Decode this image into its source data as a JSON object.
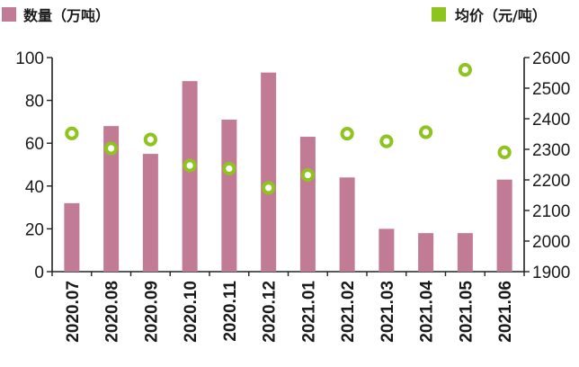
{
  "chart_data": {
    "type": "bar+scatter",
    "categories": [
      "2020.07",
      "2020.08",
      "2020.09",
      "2020.10",
      "2020.11",
      "2020.12",
      "2021.01",
      "2021.02",
      "2021.03",
      "2021.04",
      "2021.05",
      "2021.06"
    ],
    "series": [
      {
        "name": "数量（万吨）",
        "type": "bar",
        "axis": "left",
        "color": "#c17b95",
        "values": [
          32,
          68,
          55,
          89,
          71,
          93,
          63,
          44,
          20,
          18,
          18,
          43
        ]
      },
      {
        "name": "均价（元/吨）",
        "type": "scatter",
        "axis": "right",
        "color": "#8fc31f",
        "values": [
          2352,
          2303,
          2332,
          2247,
          2237,
          2174,
          2216,
          2351,
          2326,
          2356,
          2560,
          2290
        ]
      }
    ],
    "left_axis": {
      "min": 0,
      "max": 100,
      "ticks": [
        "0",
        "20",
        "40",
        "60",
        "80",
        "100"
      ]
    },
    "right_axis": {
      "min": 1900,
      "max": 2600,
      "ticks": [
        "1900",
        "2000",
        "2100",
        "2200",
        "2300",
        "2400",
        "2500",
        "2600"
      ]
    },
    "legend": {
      "placement": "top"
    }
  }
}
